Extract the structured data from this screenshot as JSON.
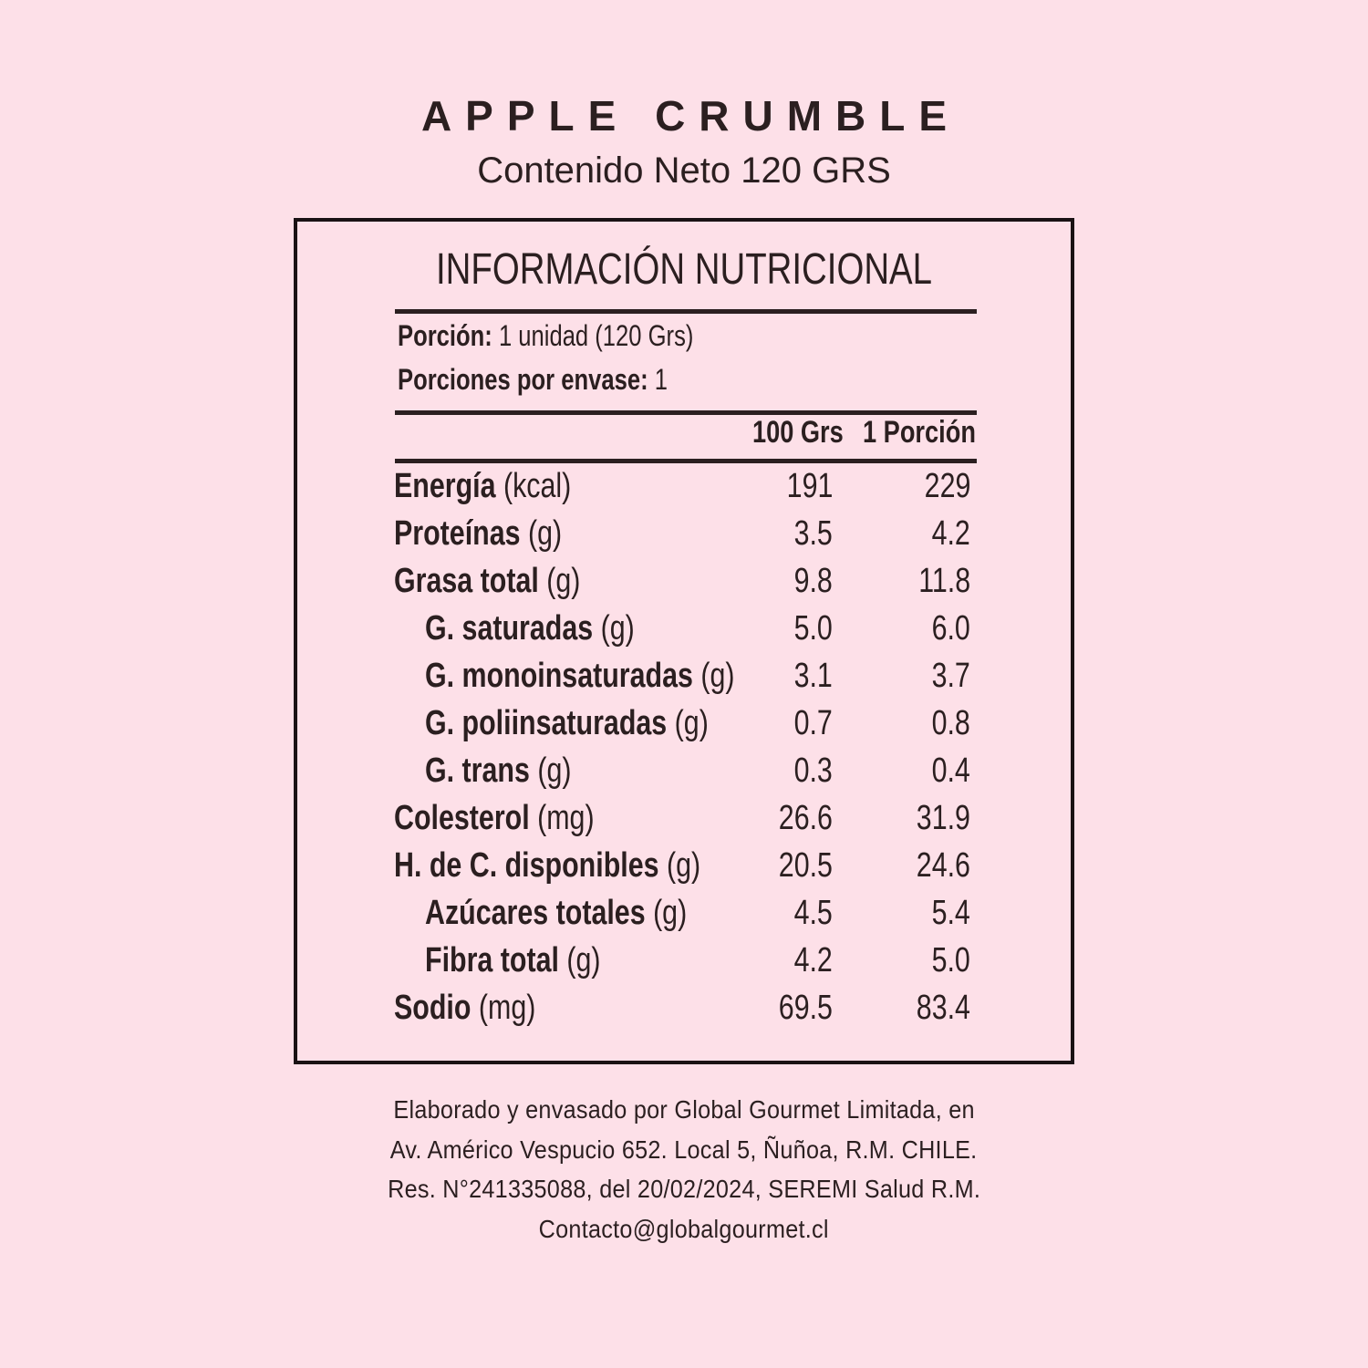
{
  "product": {
    "name": "APPLE CRUMBLE",
    "net_content": "Contenido Neto 120 GRS"
  },
  "label": {
    "title": "INFORMACIÓN NUTRICIONAL",
    "portion_label": "Porción:",
    "portion_value": "1 unidad (120 Grs)",
    "portions_label": "Porciones por envase:",
    "portions_value": "1",
    "col1": "100 Grs",
    "col2": "1 Porción",
    "rows": [
      {
        "name": "Energía",
        "unit": "(kcal)",
        "v100": "191",
        "vportion": "229",
        "indent": false
      },
      {
        "name": "Proteínas",
        "unit": "(g)",
        "v100": "3.5",
        "vportion": "4.2",
        "indent": false
      },
      {
        "name": "Grasa total",
        "unit": "(g)",
        "v100": "9.8",
        "vportion": "11.8",
        "indent": false
      },
      {
        "name": "G. saturadas",
        "unit": "(g)",
        "v100": "5.0",
        "vportion": "6.0",
        "indent": true
      },
      {
        "name": "G. monoinsaturadas",
        "unit": "(g)",
        "v100": "3.1",
        "vportion": "3.7",
        "indent": true
      },
      {
        "name": "G. poliinsaturadas",
        "unit": "(g)",
        "v100": "0.7",
        "vportion": "0.8",
        "indent": true
      },
      {
        "name": "G. trans",
        "unit": "(g)",
        "v100": "0.3",
        "vportion": "0.4",
        "indent": true
      },
      {
        "name": "Colesterol",
        "unit": "(mg)",
        "v100": "26.6",
        "vportion": "31.9",
        "indent": false
      },
      {
        "name": "H. de C. disponibles",
        "unit": "(g)",
        "v100": "20.5",
        "vportion": "24.6",
        "indent": false
      },
      {
        "name": "Azúcares totales",
        "unit": "(g)",
        "v100": "4.5",
        "vportion": "5.4",
        "indent": true
      },
      {
        "name": "Fibra total",
        "unit": "(g)",
        "v100": "4.2",
        "vportion": "5.0",
        "indent": true
      },
      {
        "name": "Sodio",
        "unit": "(mg)",
        "v100": "69.5",
        "vportion": "83.4",
        "indent": false
      }
    ]
  },
  "footer": {
    "lines": [
      "Elaborado y envasado por Global Gourmet Limitada, en",
      "Av. Américo Vespucio 652. Local 5, Ñuñoa, R.M. CHILE.",
      "Res. N°241335088, del 20/02/2024, SEREMI Salud R.M.",
      "Contacto@globalgourmet.cl"
    ]
  },
  "colors": {
    "background": "#fde0e8",
    "text": "#2b1f20",
    "border": "#1a1214"
  }
}
